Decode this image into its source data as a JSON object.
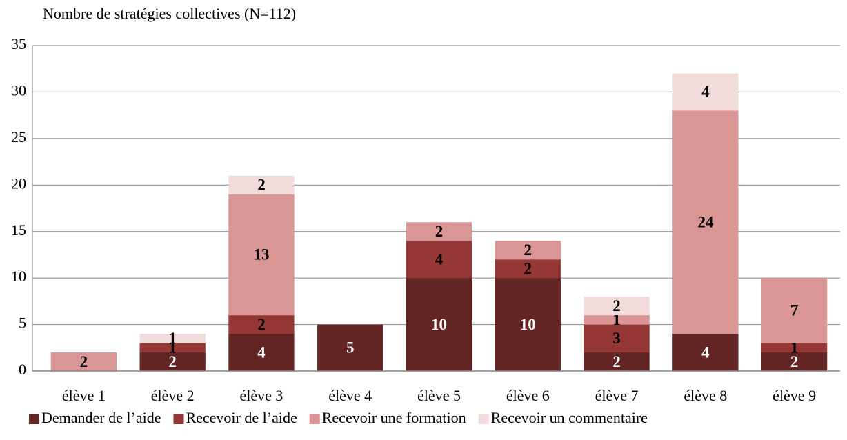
{
  "chart_data": {
    "type": "bar",
    "stacked": true,
    "ylabel": "Nombre de stratégies collectives (N=112)",
    "categories": [
      "élève 1",
      "élève 2",
      "élève 3",
      "élève 4",
      "élève 5",
      "élève 6",
      "élève 7",
      "élève 8",
      "élève 9"
    ],
    "series": [
      {
        "name": "Demander de l’aide",
        "color": "#632523",
        "label_color": "#ffffff",
        "values": [
          0,
          2,
          4,
          5,
          10,
          10,
          2,
          4,
          2
        ]
      },
      {
        "name": "Recevoir de l’aide",
        "color": "#953735",
        "label_color": "#000000",
        "values": [
          0,
          1,
          2,
          0,
          4,
          2,
          3,
          0,
          1
        ]
      },
      {
        "name": "Recevoir une formation",
        "color": "#d99694",
        "label_color": "#000000",
        "values": [
          2,
          0,
          13,
          0,
          2,
          2,
          1,
          24,
          7
        ]
      },
      {
        "name": "Recevoir un commentaire",
        "color": "#f2dcdb",
        "label_color": "#000000",
        "values": [
          0,
          1,
          2,
          0,
          0,
          0,
          2,
          4,
          0
        ]
      }
    ],
    "ylim": [
      0,
      35
    ],
    "yticks": [
      0,
      5,
      10,
      15,
      20,
      25,
      30,
      35
    ],
    "grid": true,
    "legend": "bottom"
  }
}
